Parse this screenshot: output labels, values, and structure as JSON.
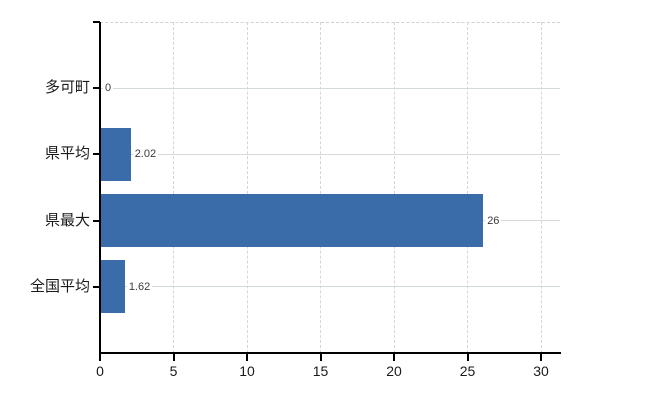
{
  "chart_data": {
    "type": "bar",
    "orientation": "horizontal",
    "title": "",
    "xlabel": "",
    "ylabel": "",
    "categories": [
      "多可町",
      "県平均",
      "県最大",
      "全国平均"
    ],
    "values": [
      0,
      2.02,
      26,
      1.62
    ],
    "value_labels": [
      "0",
      "2.02",
      "26",
      "1.62"
    ],
    "xlim": [
      0,
      30
    ],
    "xticks": [
      0,
      5,
      10,
      15,
      20,
      25,
      30
    ],
    "grid": true,
    "legend": false,
    "bar_color": "#3b6caa",
    "colors": {
      "axis": "#000000",
      "grid_vertical": "#d6d6da",
      "grid_horizontal": "#d3dcd3",
      "plot_border": "#d2d2d2",
      "text": "#1a1a1a",
      "value_text": "#3a3a3a",
      "background": "#ffffff"
    }
  }
}
